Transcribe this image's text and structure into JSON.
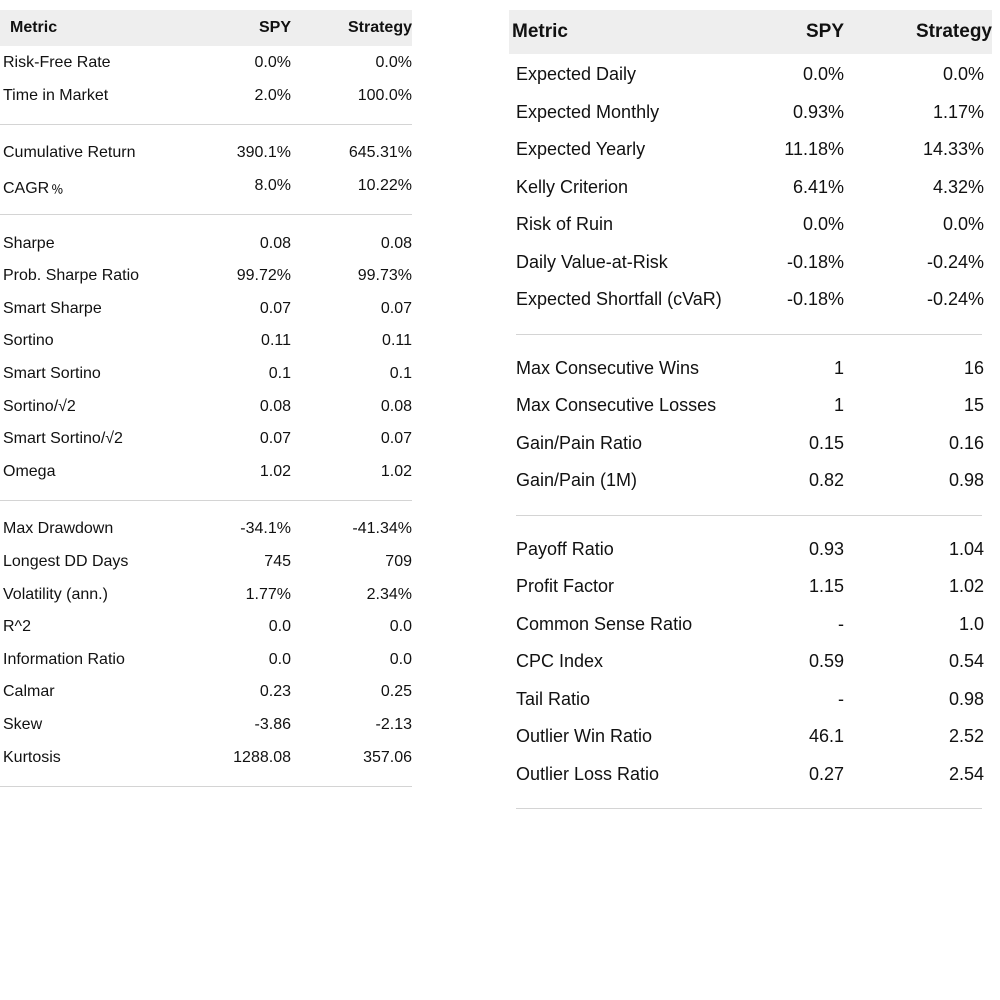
{
  "left": {
    "headers": {
      "metric": "Metric",
      "spy": "SPY",
      "strategy": "Strategy"
    },
    "groups": [
      [
        {
          "label": "Risk-Free Rate",
          "spy": "0.0%",
          "strategy": "0.0%"
        },
        {
          "label": "Time in Market",
          "spy": "2.0%",
          "strategy": "100.0%"
        }
      ],
      [
        {
          "label": "Cumulative Return",
          "spy": "390.1%",
          "strategy": "645.31%"
        },
        {
          "label": "CAGR﹪",
          "spy": "8.0%",
          "strategy": "10.22%"
        }
      ],
      [
        {
          "label": "Sharpe",
          "spy": "0.08",
          "strategy": "0.08"
        },
        {
          "label": "Prob. Sharpe Ratio",
          "spy": "99.72%",
          "strategy": "99.73%"
        },
        {
          "label": "Smart Sharpe",
          "spy": "0.07",
          "strategy": "0.07"
        },
        {
          "label": "Sortino",
          "spy": "0.11",
          "strategy": "0.11"
        },
        {
          "label": "Smart Sortino",
          "spy": "0.1",
          "strategy": "0.1"
        },
        {
          "label": "Sortino/√2",
          "spy": "0.08",
          "strategy": "0.08"
        },
        {
          "label": "Smart Sortino/√2",
          "spy": "0.07",
          "strategy": "0.07"
        },
        {
          "label": "Omega",
          "spy": "1.02",
          "strategy": "1.02"
        }
      ],
      [
        {
          "label": "Max Drawdown",
          "spy": "-34.1%",
          "strategy": "-41.34%"
        },
        {
          "label": "Longest DD Days",
          "spy": "745",
          "strategy": "709"
        },
        {
          "label": "Volatility (ann.)",
          "spy": "1.77%",
          "strategy": "2.34%"
        },
        {
          "label": "R^2",
          "spy": "0.0",
          "strategy": "0.0"
        },
        {
          "label": "Information Ratio",
          "spy": "0.0",
          "strategy": "0.0"
        },
        {
          "label": "Calmar",
          "spy": "0.23",
          "strategy": "0.25"
        },
        {
          "label": "Skew",
          "spy": "-3.86",
          "strategy": "-2.13"
        },
        {
          "label": "Kurtosis",
          "spy": "1288.08",
          "strategy": "357.06"
        }
      ]
    ]
  },
  "right": {
    "headers": {
      "metric": "Metric",
      "spy": "SPY",
      "strategy": "Strategy"
    },
    "groups": [
      [
        {
          "label": "Expected Daily",
          "spy": "0.0%",
          "strategy": "0.0%"
        },
        {
          "label": "Expected Monthly",
          "spy": "0.93%",
          "strategy": "1.17%"
        },
        {
          "label": "Expected Yearly",
          "spy": "11.18%",
          "strategy": "14.33%"
        },
        {
          "label": "Kelly Criterion",
          "spy": "6.41%",
          "strategy": "4.32%"
        },
        {
          "label": "Risk of Ruin",
          "spy": "0.0%",
          "strategy": "0.0%"
        },
        {
          "label": "Daily Value-at-Risk",
          "spy": "-0.18%",
          "strategy": "-0.24%"
        },
        {
          "label": "Expected Shortfall (cVaR)",
          "spy": "-0.18%",
          "strategy": "-0.24%"
        }
      ],
      [
        {
          "label": "Max Consecutive Wins",
          "spy": "1",
          "strategy": "16"
        },
        {
          "label": "Max Consecutive Losses",
          "spy": "1",
          "strategy": "15"
        },
        {
          "label": "Gain/Pain Ratio",
          "spy": "0.15",
          "strategy": "0.16"
        },
        {
          "label": "Gain/Pain (1M)",
          "spy": "0.82",
          "strategy": "0.98"
        }
      ],
      [
        {
          "label": "Payoff Ratio",
          "spy": "0.93",
          "strategy": "1.04"
        },
        {
          "label": "Profit Factor",
          "spy": "1.15",
          "strategy": "1.02"
        },
        {
          "label": "Common Sense Ratio",
          "spy": "-",
          "strategy": "1.0"
        },
        {
          "label": "CPC Index",
          "spy": "0.59",
          "strategy": "0.54"
        },
        {
          "label": "Tail Ratio",
          "spy": "-",
          "strategy": "0.98"
        },
        {
          "label": "Outlier Win Ratio",
          "spy": "46.1",
          "strategy": "2.52"
        },
        {
          "label": "Outlier Loss Ratio",
          "spy": "0.27",
          "strategy": "2.54"
        }
      ]
    ]
  }
}
